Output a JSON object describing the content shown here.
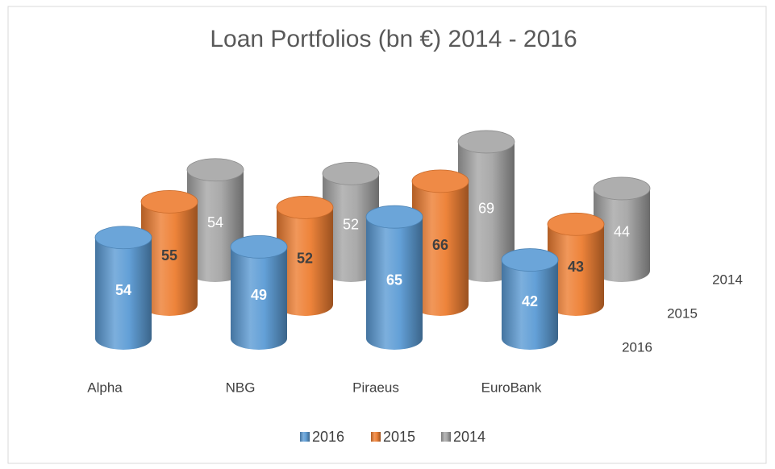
{
  "chart_data": {
    "type": "bar",
    "title": "Loan Portfolios (bn €) 2014 - 2016",
    "categories": [
      "Alpha",
      "NBG",
      "Piraeus",
      "EuroBank"
    ],
    "series": [
      {
        "name": "2016",
        "color": "#5b9bd5",
        "values": [
          54,
          49,
          65,
          42
        ]
      },
      {
        "name": "2015",
        "color": "#ed7d31",
        "values": [
          55,
          52,
          66,
          43
        ]
      },
      {
        "name": "2014",
        "color": "#a5a5a5",
        "values": [
          54,
          52,
          69,
          44
        ]
      }
    ]
  }
}
